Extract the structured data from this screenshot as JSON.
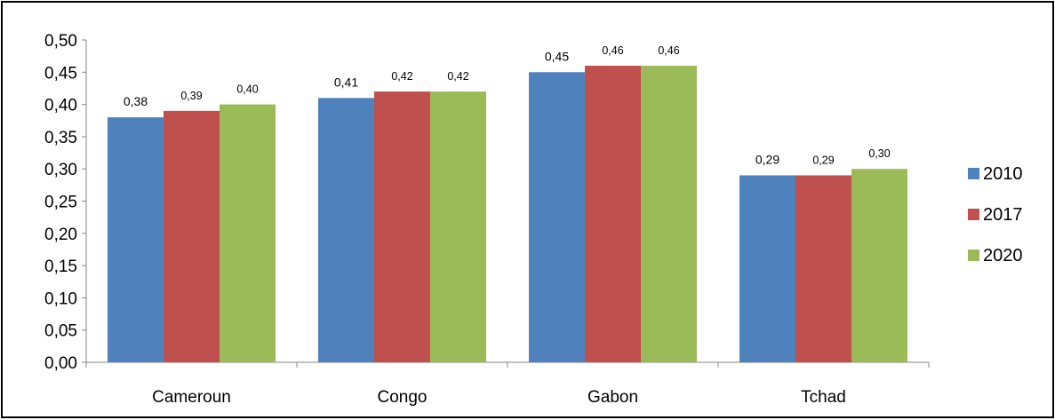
{
  "chart_data": {
    "type": "bar",
    "categories": [
      "Cameroun",
      "Congo",
      "Gabon",
      "Tchad"
    ],
    "series": [
      {
        "name": "2010",
        "color": "#4F81BD",
        "values": [
          0.38,
          0.41,
          0.45,
          0.29
        ],
        "labels": [
          "0,38",
          "0,41",
          "0,45",
          "0,29"
        ]
      },
      {
        "name": "2017",
        "color": "#C0504D",
        "values": [
          0.39,
          0.42,
          0.46,
          0.29
        ],
        "labels": [
          "0,39",
          "0,42",
          "0,46",
          "0,29"
        ]
      },
      {
        "name": "2020",
        "color": "#9BBB59",
        "values": [
          0.4,
          0.42,
          0.46,
          0.3
        ],
        "labels": [
          "0,40",
          "0,42",
          "0,46",
          "0,30"
        ]
      }
    ],
    "yticks": [
      "0,00",
      "0,05",
      "0,10",
      "0,15",
      "0,20",
      "0,25",
      "0,30",
      "0,35",
      "0,40",
      "0,45",
      "0,50"
    ],
    "ylim": [
      0,
      0.5
    ],
    "title": "",
    "xlabel": "",
    "ylabel": "",
    "grid": false,
    "legend": "right"
  }
}
